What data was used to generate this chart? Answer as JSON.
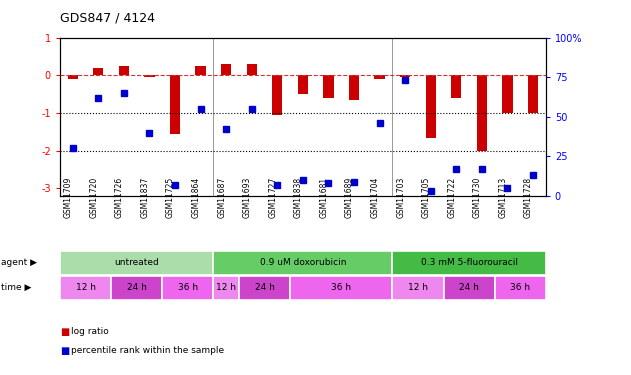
{
  "title": "GDS847 / 4124",
  "samples": [
    "GSM11709",
    "GSM11720",
    "GSM11726",
    "GSM11837",
    "GSM11725",
    "GSM11864",
    "GSM11687",
    "GSM11693",
    "GSM11727",
    "GSM11838",
    "GSM11681",
    "GSM11689",
    "GSM11704",
    "GSM11703",
    "GSM11705",
    "GSM11722",
    "GSM11730",
    "GSM11713",
    "GSM11728"
  ],
  "log_ratio": [
    -0.1,
    0.2,
    0.25,
    -0.05,
    -1.55,
    0.25,
    0.3,
    0.3,
    -1.05,
    -0.5,
    -0.6,
    -0.65,
    -0.1,
    -0.05,
    -1.65,
    -0.6,
    -2.0,
    -1.0,
    -1.0
  ],
  "percentile_rank": [
    30,
    62,
    65,
    40,
    7,
    55,
    42,
    55,
    7,
    10,
    8,
    9,
    46,
    73,
    3,
    17,
    17,
    5,
    13
  ],
  "bar_color": "#cc0000",
  "dot_color": "#0000cc",
  "dashed_line_color": "#cc3333",
  "background_color": "#ffffff",
  "ylim_left": [
    -3.2,
    1.0
  ],
  "ylim_right": [
    0,
    100
  ],
  "right_ticks": [
    0,
    25,
    50,
    75,
    100
  ],
  "right_tick_labels": [
    "0",
    "25",
    "50",
    "75",
    "100%"
  ],
  "left_ticks": [
    -3,
    -2,
    -1,
    0,
    1
  ],
  "agent_spans": [
    {
      "start": 0,
      "end": 6,
      "label": "untreated",
      "color": "#aaddaa"
    },
    {
      "start": 6,
      "end": 13,
      "label": "0.9 uM doxorubicin",
      "color": "#66cc66"
    },
    {
      "start": 13,
      "end": 19,
      "label": "0.3 mM 5-fluorouracil",
      "color": "#44bb44"
    }
  ],
  "time_spans": [
    {
      "start": 0,
      "end": 2,
      "label": "12 h",
      "color": "#ee88ee"
    },
    {
      "start": 2,
      "end": 4,
      "label": "24 h",
      "color": "#cc44cc"
    },
    {
      "start": 4,
      "end": 6,
      "label": "36 h",
      "color": "#ee66ee"
    },
    {
      "start": 6,
      "end": 7,
      "label": "12 h",
      "color": "#ee88ee"
    },
    {
      "start": 7,
      "end": 9,
      "label": "24 h",
      "color": "#cc44cc"
    },
    {
      "start": 9,
      "end": 13,
      "label": "36 h",
      "color": "#ee66ee"
    },
    {
      "start": 13,
      "end": 15,
      "label": "12 h",
      "color": "#ee88ee"
    },
    {
      "start": 15,
      "end": 17,
      "label": "24 h",
      "color": "#cc44cc"
    },
    {
      "start": 17,
      "end": 19,
      "label": "36 h",
      "color": "#ee66ee"
    }
  ],
  "legend_bar_label": "log ratio",
  "legend_dot_label": "percentile rank within the sample",
  "agent_label": "agent",
  "time_label": "time",
  "group_separators": [
    5.5,
    12.5
  ]
}
